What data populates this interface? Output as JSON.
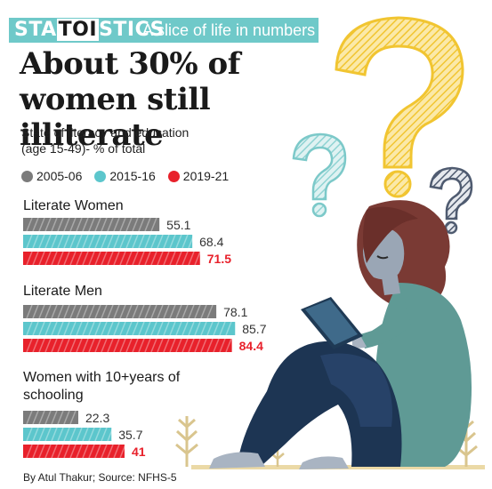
{
  "brand": {
    "prefix": "STA",
    "highlight": "TOI",
    "suffix": "STICS",
    "tagline": "A slice of life in numbers"
  },
  "headline": {
    "line1": "About 30% of",
    "line2": "women still illiterate"
  },
  "subtitle": {
    "line1": "State of literacy and education",
    "line2": "(age 15-49)- % of total"
  },
  "byline": "By Atul Thakur; Source: NFHS-5",
  "colors": {
    "banner": "#6fc9c9",
    "s2005": "#7b7b7b",
    "s2015": "#5cc6cc",
    "s2019": "#e8212b"
  },
  "chart_data": {
    "type": "bar",
    "orientation": "horizontal",
    "categories": [
      "Literate Women",
      "Literate Men",
      "Women with 10+years of schooling"
    ],
    "series": [
      {
        "name": "2005-06",
        "color": "#7b7b7b",
        "values": [
          55.1,
          78.1,
          22.3
        ]
      },
      {
        "name": "2015-16",
        "color": "#5cc6cc",
        "values": [
          68.4,
          85.7,
          35.7
        ]
      },
      {
        "name": "2019-21",
        "color": "#e8212b",
        "values": [
          71.5,
          84.4,
          41
        ]
      }
    ],
    "value_labels": [
      [
        "55.1",
        "68.4",
        "71.5"
      ],
      [
        "78.1",
        "85.7",
        "84.4"
      ],
      [
        "22.3",
        "35.7",
        "41"
      ]
    ],
    "legend_position": "top",
    "grid": false
  }
}
